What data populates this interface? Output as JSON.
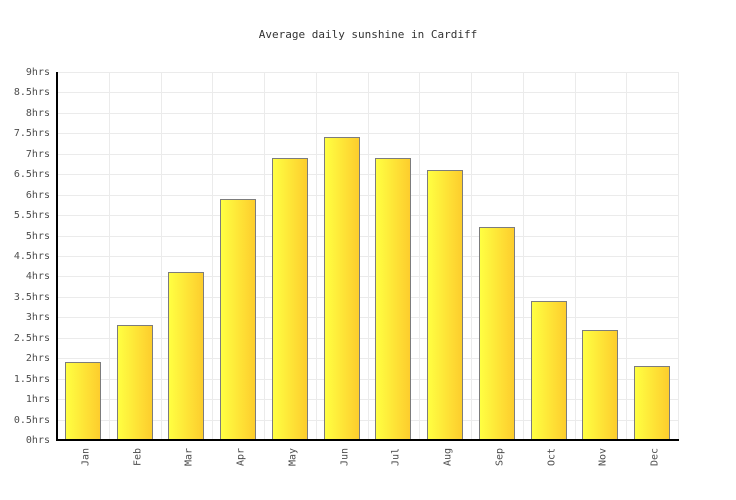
{
  "title": "Average daily sunshine in Cardiff",
  "chart_data": {
    "type": "bar",
    "title": "Average daily sunshine in Cardiff",
    "categories": [
      "Jan",
      "Feb",
      "Mar",
      "Apr",
      "May",
      "Jun",
      "Jul",
      "Aug",
      "Sep",
      "Oct",
      "Nov",
      "Dec"
    ],
    "values": [
      1.9,
      2.8,
      4.1,
      5.9,
      6.9,
      7.4,
      6.9,
      6.6,
      5.2,
      3.4,
      2.7,
      1.8
    ],
    "xlabel": "",
    "ylabel": "",
    "ylim": [
      0,
      9
    ],
    "ytick_step": 0.5,
    "ytick_suffix": "hrs",
    "ytick_labels": [
      "9hrs",
      "8.5hrs",
      "8hrs",
      "7.5hrs",
      "7hrs",
      "6.5hrs",
      "6hrs",
      "5.5hrs",
      "5hrs",
      "4.5hrs",
      "4hrs",
      "3.5hrs",
      "3hrs",
      "2.5hrs",
      "2hrs",
      "1.5hrs",
      "1hrs",
      "0.5hrs",
      "0hrs"
    ],
    "grid": true,
    "legend": "none",
    "colors": {
      "bar_gradient_left": "#ffff42",
      "bar_gradient_right": "#fdcd2d",
      "bar_border": "#7c7c7c",
      "gridline": "#ebebeb",
      "axis": "#000000",
      "tick_text": "#4d4d4d",
      "title_text": "#333333",
      "background": "#ffffff"
    }
  }
}
